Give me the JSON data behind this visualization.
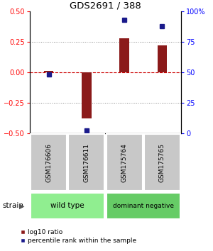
{
  "title": "GDS2691 / 388",
  "samples": [
    "GSM176606",
    "GSM176611",
    "GSM175764",
    "GSM175765"
  ],
  "log10_ratio": [
    0.01,
    -0.38,
    0.28,
    0.22
  ],
  "percentile_rank": [
    48,
    2,
    93,
    88
  ],
  "groups": [
    {
      "label": "wild type",
      "span": [
        0,
        2
      ],
      "color": "#90ee90"
    },
    {
      "label": "dominant negative",
      "span": [
        2,
        4
      ],
      "color": "#66cc66"
    }
  ],
  "group_label": "strain",
  "ylim_left": [
    -0.5,
    0.5
  ],
  "ylim_right": [
    0,
    100
  ],
  "yticks_left": [
    -0.5,
    -0.25,
    0,
    0.25,
    0.5
  ],
  "yticks_right": [
    0,
    25,
    50,
    75,
    100
  ],
  "ytick_right_labels": [
    "0",
    "25",
    "50",
    "75",
    "100%"
  ],
  "bar_color": "#8b1a1a",
  "dot_color": "#1a1a8b",
  "hline_color": "#cc0000",
  "dot_grid_color": "#000000",
  "bg_color": "#ffffff",
  "plot_bg": "#ffffff",
  "sample_box_color": "#c8c8c8",
  "sample_box_border": "#ffffff",
  "legend_red_label": "log10 ratio",
  "legend_blue_label": "percentile rank within the sample",
  "bar_width": 0.25,
  "marker_size": 4
}
